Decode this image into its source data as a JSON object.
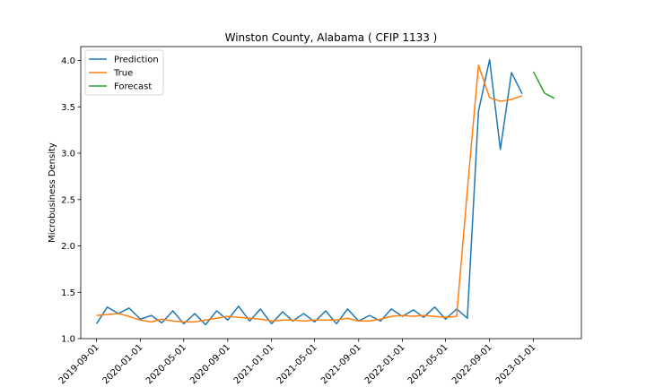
{
  "chart_data": {
    "type": "line",
    "title": "Winston County, Alabama ( CFIP 1133 )",
    "xlabel": "",
    "ylabel": "Microbusiness Density",
    "x_ticks": [
      "2019-09-01",
      "2020-01-01",
      "2020-05-01",
      "2020-09-01",
      "2021-01-01",
      "2021-05-01",
      "2021-09-01",
      "2022-01-01",
      "2022-05-01",
      "2022-09-01",
      "2023-01-01"
    ],
    "y_ticks": [
      "1.0",
      "1.5",
      "2.0",
      "2.5",
      "3.0",
      "3.5",
      "4.0"
    ],
    "ylim": [
      1.0,
      4.15
    ],
    "xlim": [
      "2019-07-19",
      "2023-05-15"
    ],
    "grid": false,
    "legend_position": "top-left",
    "series": [
      {
        "name": "Prediction",
        "color": "#1f77b4",
        "x": [
          "2019-09-01",
          "2019-10-01",
          "2019-11-01",
          "2019-12-01",
          "2020-01-01",
          "2020-02-01",
          "2020-03-01",
          "2020-04-01",
          "2020-05-01",
          "2020-06-01",
          "2020-07-01",
          "2020-08-01",
          "2020-09-01",
          "2020-10-01",
          "2020-11-01",
          "2020-12-01",
          "2021-01-01",
          "2021-02-01",
          "2021-03-01",
          "2021-04-01",
          "2021-05-01",
          "2021-06-01",
          "2021-07-01",
          "2021-08-01",
          "2021-09-01",
          "2021-10-01",
          "2021-11-01",
          "2021-12-01",
          "2022-01-01",
          "2022-02-01",
          "2022-03-01",
          "2022-04-01",
          "2022-05-01",
          "2022-06-01",
          "2022-07-01",
          "2022-08-01",
          "2022-09-01",
          "2022-10-01",
          "2022-11-01",
          "2022-12-01"
        ],
        "values": [
          1.16,
          1.34,
          1.27,
          1.33,
          1.21,
          1.25,
          1.17,
          1.3,
          1.16,
          1.27,
          1.15,
          1.3,
          1.2,
          1.35,
          1.19,
          1.32,
          1.16,
          1.29,
          1.19,
          1.27,
          1.18,
          1.3,
          1.16,
          1.32,
          1.19,
          1.25,
          1.19,
          1.32,
          1.24,
          1.31,
          1.23,
          1.34,
          1.21,
          1.32,
          1.22,
          3.45,
          4.01,
          3.04,
          3.87,
          3.64
        ]
      },
      {
        "name": "True",
        "color": "#ff7f0e",
        "x": [
          "2019-09-01",
          "2019-10-01",
          "2019-11-01",
          "2019-12-01",
          "2020-01-01",
          "2020-02-01",
          "2020-03-01",
          "2020-04-01",
          "2020-05-01",
          "2020-06-01",
          "2020-07-01",
          "2020-08-01",
          "2020-09-01",
          "2020-10-01",
          "2020-11-01",
          "2020-12-01",
          "2021-01-01",
          "2021-02-01",
          "2021-03-01",
          "2021-04-01",
          "2021-05-01",
          "2021-06-01",
          "2021-07-01",
          "2021-08-01",
          "2021-09-01",
          "2021-10-01",
          "2021-11-01",
          "2021-12-01",
          "2022-01-01",
          "2022-02-01",
          "2022-03-01",
          "2022-04-01",
          "2022-05-01",
          "2022-06-01",
          "2022-07-01",
          "2022-08-01",
          "2022-09-01",
          "2022-10-01",
          "2022-11-01",
          "2022-12-01"
        ],
        "values": [
          1.25,
          1.26,
          1.27,
          1.24,
          1.2,
          1.18,
          1.21,
          1.19,
          1.18,
          1.18,
          1.2,
          1.22,
          1.24,
          1.23,
          1.22,
          1.21,
          1.19,
          1.2,
          1.2,
          1.19,
          1.2,
          1.2,
          1.2,
          1.22,
          1.19,
          1.19,
          1.21,
          1.24,
          1.25,
          1.24,
          1.25,
          1.24,
          1.23,
          1.24,
          2.6,
          3.95,
          3.6,
          3.56,
          3.58,
          3.62
        ]
      },
      {
        "name": "Forecast",
        "color": "#2ca02c",
        "x": [
          "2023-01-01",
          "2023-02-01",
          "2023-03-01"
        ],
        "values": [
          3.88,
          3.65,
          3.59
        ]
      }
    ]
  }
}
